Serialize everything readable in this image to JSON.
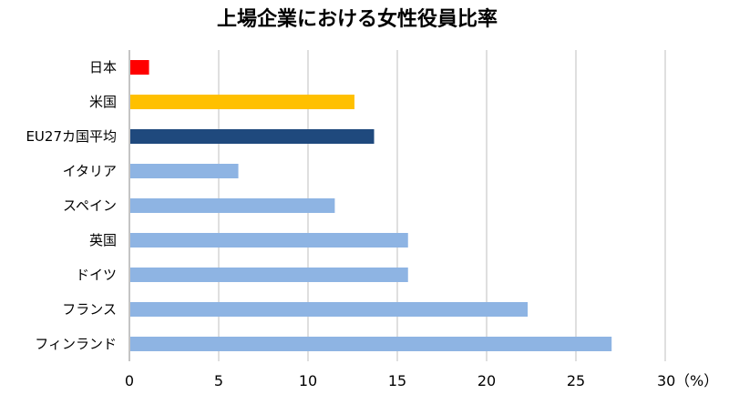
{
  "chart_data": {
    "type": "bar",
    "orientation": "horizontal",
    "title": "上場企業における女性役員比率",
    "xlabel": "",
    "ylabel": "",
    "unit": "（%）",
    "xlim": [
      0,
      30
    ],
    "xticks": [
      "0",
      "5",
      "10",
      "15",
      "20",
      "25",
      "30"
    ],
    "grid": true,
    "categories": [
      "日本",
      "米国",
      "EU27カ国平均",
      "イタリア",
      "スペイン",
      "英国",
      "ドイツ",
      "フランス",
      "フィンランド"
    ],
    "values": [
      1.1,
      12.6,
      13.7,
      6.1,
      11.5,
      15.6,
      15.6,
      22.3,
      27.0
    ],
    "colors": [
      "#ff0000",
      "#ffc000",
      "#1f497d",
      "#8eb4e3",
      "#8eb4e3",
      "#8eb4e3",
      "#8eb4e3",
      "#8eb4e3",
      "#8eb4e3"
    ],
    "gridline_color": "#bfbfbf",
    "axis_color": "#888888"
  }
}
